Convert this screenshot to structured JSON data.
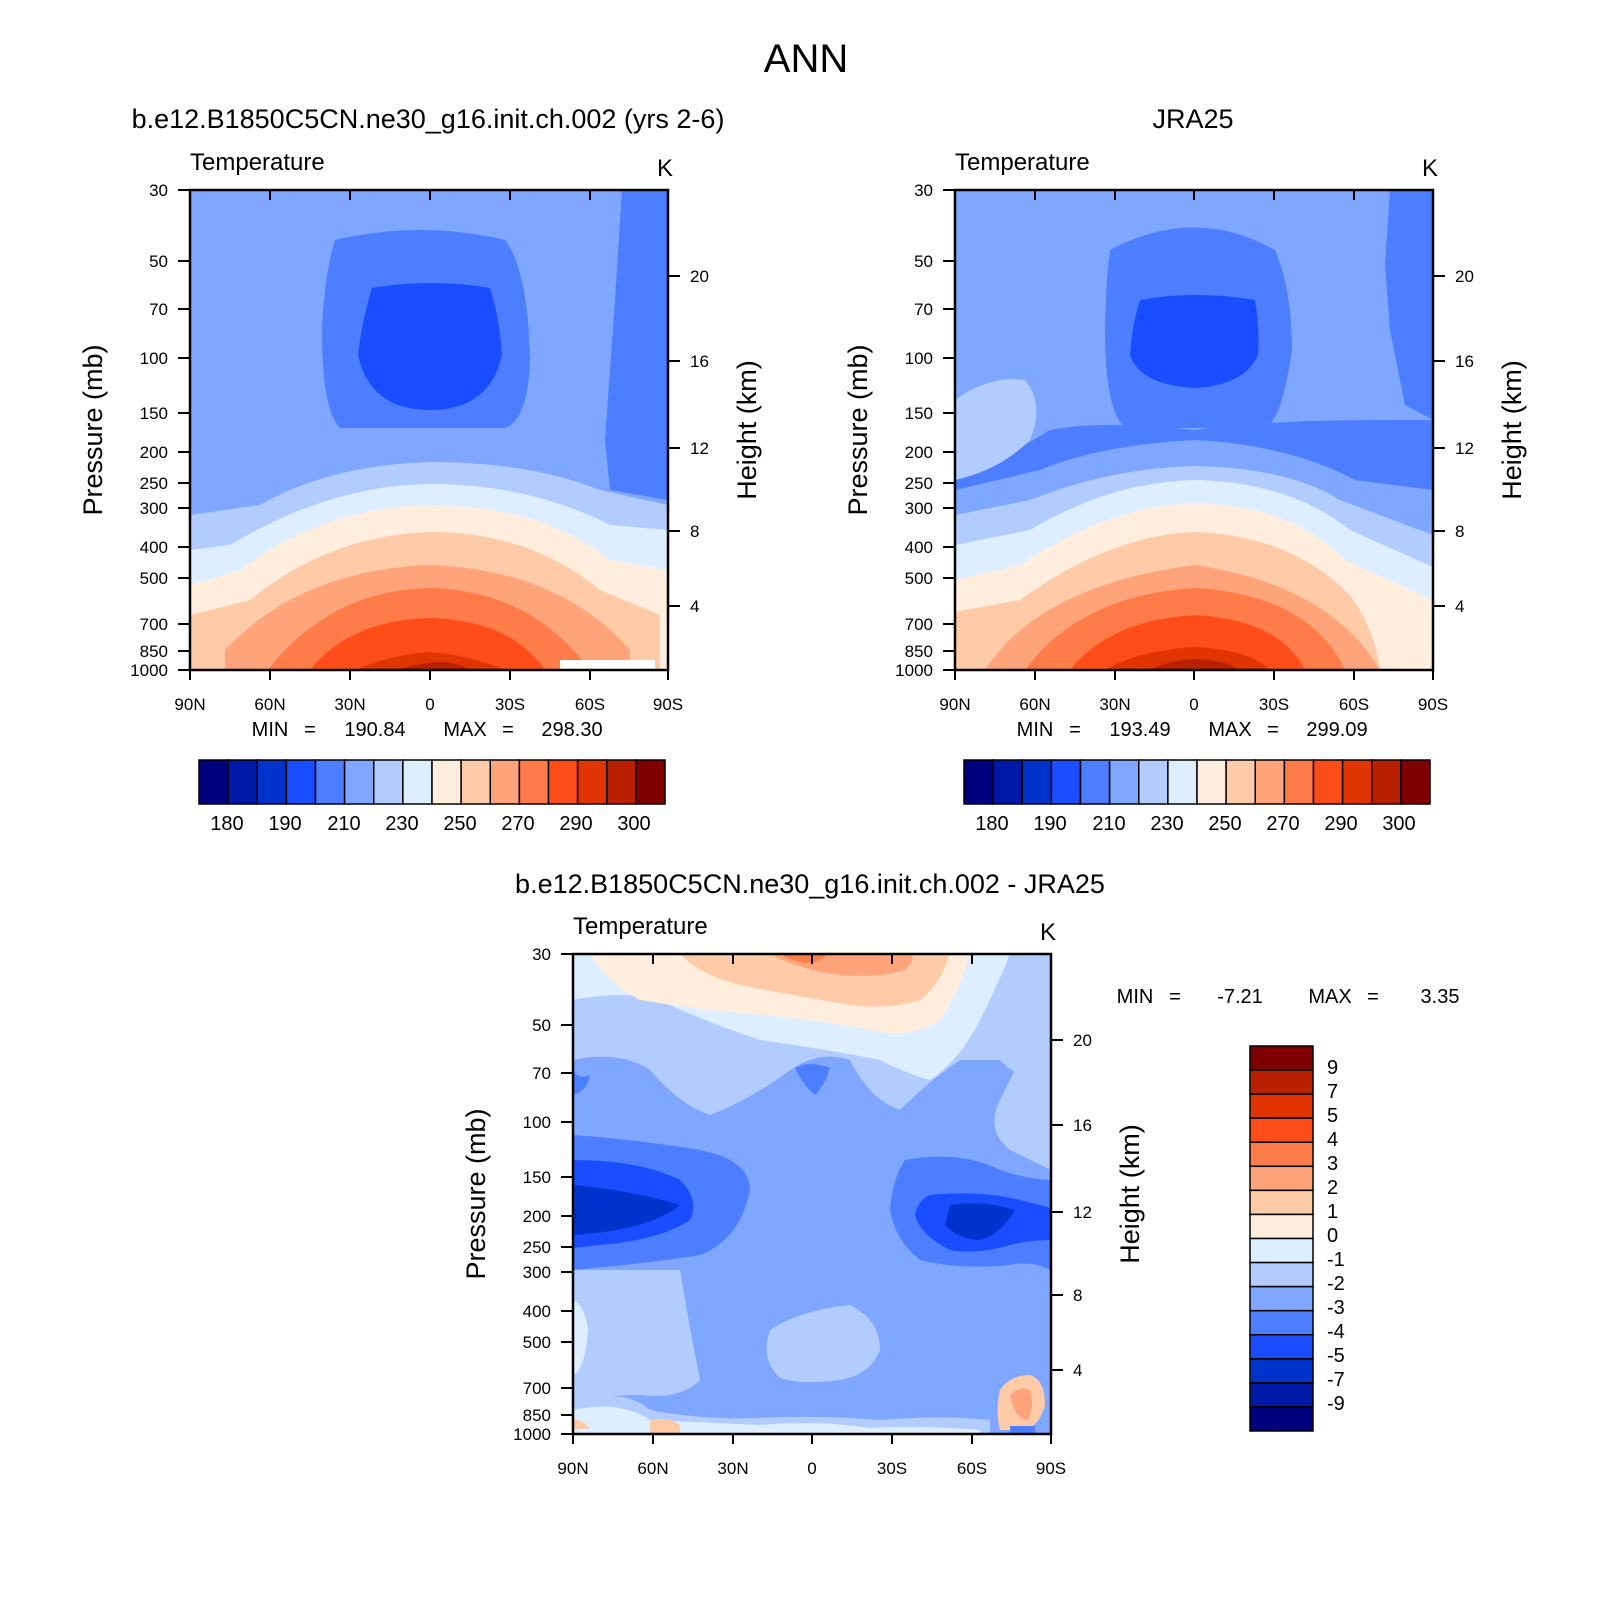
{
  "figure_title": "ANN",
  "colors": {
    "temperature_bands": [
      "#00007f",
      "#0019a6",
      "#0033cc",
      "#1a4dff",
      "#4d7eff",
      "#7fa7ff",
      "#b3ccff",
      "#dceeff",
      "#ffeedd",
      "#ffcaa8",
      "#ffa47a",
      "#ff7b47",
      "#ff4d1a",
      "#e03500",
      "#b82000",
      "#7f0000"
    ],
    "difference_bands": [
      "#00007f",
      "#0019a6",
      "#0033cc",
      "#1a4dff",
      "#4d7eff",
      "#7fa7ff",
      "#b3ccff",
      "#dceeff",
      "#ffeedd",
      "#ffcaa8",
      "#ffa47a",
      "#ff7b47",
      "#ff4d1a",
      "#e03500",
      "#b82000",
      "#7f0000"
    ]
  },
  "chart_data": [
    {
      "type": "heatmap",
      "id": "model",
      "title": "b.e12.B1850C5CN.ne30_g16.init.ch.002 (yrs 2-6)",
      "left_string": "Temperature",
      "right_string": "K",
      "ylabel": "Pressure (mb)",
      "ylabel_right": "Height (km)",
      "x_ticks": [
        "90N",
        "60N",
        "30N",
        "0",
        "30S",
        "60S",
        "90S"
      ],
      "y_ticks": [
        "30",
        "50",
        "70",
        "100",
        "150",
        "200",
        "250",
        "300",
        "400",
        "500",
        "700",
        "850",
        "1000"
      ],
      "height_ticks": [
        "4",
        "8",
        "12",
        "16",
        "20"
      ],
      "xlim": [
        90,
        -90
      ],
      "ylim": [
        1000,
        30
      ],
      "stats": {
        "min_label": "MIN",
        "min": "190.84",
        "max_label": "MAX",
        "max": "298.30"
      },
      "colorbar_labels": [
        "180",
        "190",
        "210",
        "230",
        "250",
        "270",
        "290",
        "300"
      ],
      "levels": [
        180,
        190,
        200,
        210,
        220,
        230,
        240,
        250,
        260,
        270,
        280,
        290,
        295,
        300,
        305
      ],
      "description_of_structure": "cold tropical tropopause (~195 K near 100 mb), warm surface maximum (~298 K near equator)"
    },
    {
      "type": "heatmap",
      "id": "obs",
      "title": "JRA25",
      "left_string": "Temperature",
      "right_string": "K",
      "ylabel": "Pressure (mb)",
      "ylabel_right": "Height (km)",
      "x_ticks": [
        "90N",
        "60N",
        "30N",
        "0",
        "30S",
        "60S",
        "90S"
      ],
      "y_ticks": [
        "30",
        "50",
        "70",
        "100",
        "150",
        "200",
        "250",
        "300",
        "400",
        "500",
        "700",
        "850",
        "1000"
      ],
      "height_ticks": [
        "4",
        "8",
        "12",
        "16",
        "20"
      ],
      "xlim": [
        90,
        -90
      ],
      "ylim": [
        1000,
        30
      ],
      "stats": {
        "min_label": "MIN",
        "min": "193.49",
        "max_label": "MAX",
        "max": "299.09"
      },
      "colorbar_labels": [
        "180",
        "190",
        "210",
        "230",
        "250",
        "270",
        "290",
        "300"
      ]
    },
    {
      "type": "heatmap",
      "id": "diff",
      "title": "b.e12.B1850C5CN.ne30_g16.init.ch.002 - JRA25",
      "left_string": "Temperature",
      "right_string": "K",
      "ylabel": "Pressure (mb)",
      "ylabel_right": "Height (km)",
      "x_ticks": [
        "90N",
        "60N",
        "30N",
        "0",
        "30S",
        "60S",
        "90S"
      ],
      "y_ticks": [
        "30",
        "50",
        "70",
        "100",
        "150",
        "200",
        "250",
        "300",
        "400",
        "500",
        "700",
        "850",
        "1000"
      ],
      "height_ticks": [
        "4",
        "8",
        "12",
        "16",
        "20"
      ],
      "xlim": [
        90,
        -90
      ],
      "ylim": [
        1000,
        30
      ],
      "stats": {
        "min_label": "MIN",
        "min": "-7.21",
        "max_label": "MAX",
        "max": "3.35"
      },
      "colorbar_labels": [
        "9",
        "7",
        "5",
        "4",
        "3",
        "2",
        "1",
        "0",
        "-1",
        "-2",
        "-3",
        "-4",
        "-5",
        "-7",
        "-9"
      ]
    }
  ]
}
